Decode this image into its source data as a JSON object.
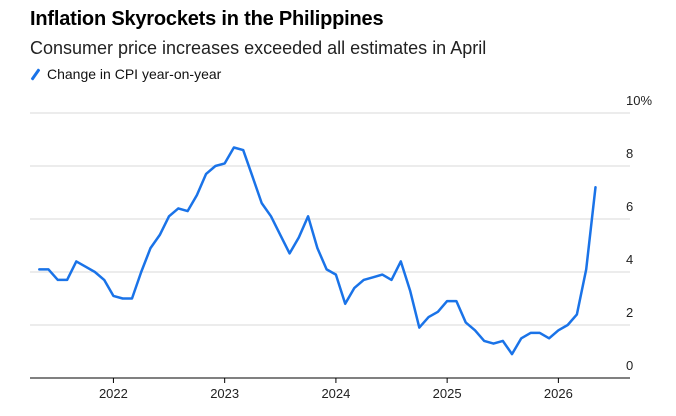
{
  "chart_data": {
    "type": "line",
    "title": "Inflation Skyrockets in the Philippines",
    "subtitle": "Consumer price increases exceeded all estimates in April",
    "legend": "top-left",
    "series": [
      {
        "name": "Change in CPI year-on-year",
        "color": "#1a73e8",
        "points": [
          [
            "2021-05",
            4.1
          ],
          [
            "2021-06",
            4.1
          ],
          [
            "2021-07",
            3.7
          ],
          [
            "2021-08",
            3.7
          ],
          [
            "2021-09",
            4.4
          ],
          [
            "2021-10",
            4.2
          ],
          [
            "2021-11",
            4.0
          ],
          [
            "2021-12",
            3.7
          ],
          [
            "2022-01",
            3.1
          ],
          [
            "2022-02",
            3.0
          ],
          [
            "2022-03",
            3.0
          ],
          [
            "2022-04",
            4.0
          ],
          [
            "2022-05",
            4.9
          ],
          [
            "2022-06",
            5.4
          ],
          [
            "2022-07",
            6.1
          ],
          [
            "2022-08",
            6.4
          ],
          [
            "2022-09",
            6.3
          ],
          [
            "2022-10",
            6.9
          ],
          [
            "2022-11",
            7.7
          ],
          [
            "2022-12",
            8.0
          ],
          [
            "2023-01",
            8.1
          ],
          [
            "2023-02",
            8.7
          ],
          [
            "2023-03",
            8.6
          ],
          [
            "2023-04",
            7.6
          ],
          [
            "2023-05",
            6.6
          ],
          [
            "2023-06",
            6.1
          ],
          [
            "2023-07",
            5.4
          ],
          [
            "2023-08",
            4.7
          ],
          [
            "2023-09",
            5.3
          ],
          [
            "2023-10",
            6.1
          ],
          [
            "2023-11",
            4.9
          ],
          [
            "2023-12",
            4.1
          ],
          [
            "2024-01",
            3.9
          ],
          [
            "2024-02",
            2.8
          ],
          [
            "2024-03",
            3.4
          ],
          [
            "2024-04",
            3.7
          ],
          [
            "2024-05",
            3.8
          ],
          [
            "2024-06",
            3.9
          ],
          [
            "2024-07",
            3.7
          ],
          [
            "2024-08",
            4.4
          ],
          [
            "2024-09",
            3.3
          ],
          [
            "2024-10",
            1.9
          ],
          [
            "2024-11",
            2.3
          ],
          [
            "2024-12",
            2.5
          ],
          [
            "2025-01",
            2.9
          ],
          [
            "2025-02",
            2.9
          ],
          [
            "2025-03",
            2.1
          ],
          [
            "2025-04",
            1.8
          ],
          [
            "2025-05",
            1.4
          ],
          [
            "2025-06",
            1.3
          ],
          [
            "2025-07",
            1.4
          ],
          [
            "2025-08",
            0.9
          ],
          [
            "2025-09",
            1.5
          ],
          [
            "2025-10",
            1.7
          ],
          [
            "2025-11",
            1.7
          ],
          [
            "2025-12",
            1.5
          ],
          [
            "2026-01",
            1.8
          ],
          [
            "2026-02",
            2.0
          ],
          [
            "2026-03",
            2.4
          ],
          [
            "2026-04",
            4.1
          ],
          [
            "2026-05",
            7.2
          ]
        ]
      }
    ],
    "x_ticks": [
      "2022",
      "2023",
      "2024",
      "2025",
      "2026"
    ],
    "y_ticks": [
      {
        "value": 0,
        "label": "0"
      },
      {
        "value": 2,
        "label": "2"
      },
      {
        "value": 4,
        "label": "4"
      },
      {
        "value": 6,
        "label": "6"
      },
      {
        "value": 8,
        "label": "8"
      },
      {
        "value": 10,
        "label": "10%"
      }
    ],
    "xlim": [
      "2021-04",
      "2026-07"
    ],
    "ylim": [
      0,
      10
    ],
    "grid": true
  }
}
